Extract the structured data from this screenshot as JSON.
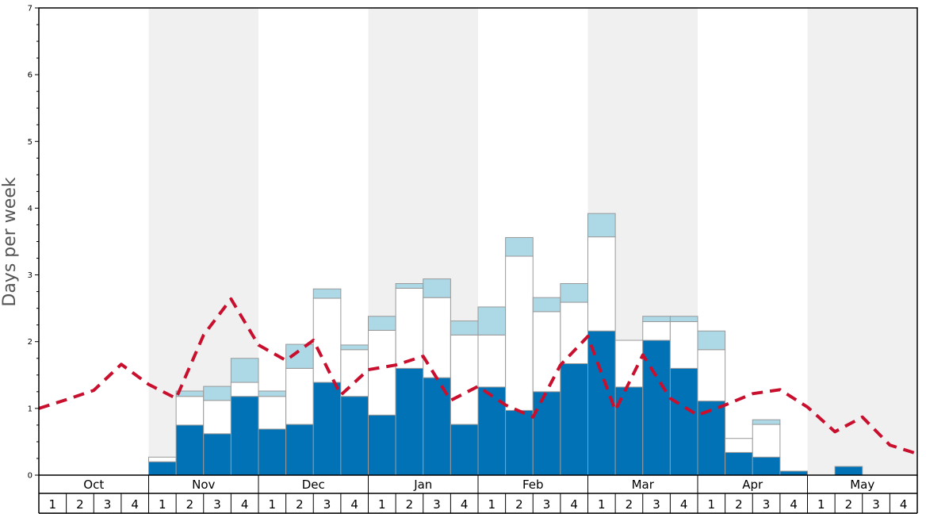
{
  "chart_data": {
    "type": "bar",
    "ylabel": "Days per week",
    "ylim": [
      0,
      7
    ],
    "y_ticks": [
      "0",
      "1",
      "2",
      "3",
      "4",
      "5",
      "6",
      "7"
    ],
    "months": [
      "Oct",
      "Nov",
      "Dec",
      "Jan",
      "Feb",
      "Mar",
      "Apr",
      "May"
    ],
    "weeks": [
      "1",
      "2",
      "3",
      "4"
    ],
    "shaded_months": [
      "Nov",
      "Jan",
      "Mar",
      "May"
    ],
    "colors": {
      "bottom": "#0072b5",
      "middle": "#ffffff",
      "top": "#add8e6",
      "line": "#c8102e",
      "shade": "#f0f0f0",
      "bar_edge": "#999999"
    },
    "stacked_series": [
      {
        "values": [
          0,
          0,
          0,
          0,
          0.2,
          0.75,
          0.62,
          1.18,
          0.69,
          0.76,
          1.39,
          1.18,
          0.9,
          1.6,
          1.46,
          0.76,
          1.32,
          0.97,
          1.25,
          1.67,
          2.16,
          1.32,
          2.02,
          1.6,
          1.11,
          0.34,
          0.27,
          0.06,
          0,
          0.13,
          0,
          0
        ]
      },
      {
        "values": [
          0,
          0,
          0,
          0,
          0.07,
          0.43,
          0.5,
          0.21,
          0.49,
          0.84,
          1.26,
          0.7,
          1.27,
          1.2,
          1.2,
          1.34,
          0.78,
          2.31,
          1.2,
          0.92,
          1.41,
          0.7,
          0.28,
          0.7,
          0.77,
          0.21,
          0.49,
          0,
          0,
          0,
          0,
          0
        ]
      },
      {
        "values": [
          0,
          0,
          0,
          0,
          0,
          0.08,
          0.21,
          0.36,
          0.08,
          0.36,
          0.14,
          0.07,
          0.21,
          0.07,
          0.28,
          0.21,
          0.42,
          0.28,
          0.21,
          0.28,
          0.35,
          0,
          0.08,
          0.08,
          0.28,
          0,
          0.07,
          0,
          0,
          0,
          0,
          0
        ]
      }
    ],
    "line_series": {
      "values": [
        1.0,
        1.13,
        1.27,
        1.66,
        1.36,
        1.15,
        2.1,
        2.64,
        1.95,
        1.72,
        2.02,
        1.2,
        1.58,
        1.65,
        1.78,
        1.12,
        1.33,
        1.05,
        0.87,
        1.65,
        2.08,
        0.97,
        1.8,
        1.15,
        0.9,
        1.05,
        1.22,
        1.28,
        1.02,
        0.65,
        0.87,
        0.45
      ],
      "x_end": 0.32
    }
  }
}
